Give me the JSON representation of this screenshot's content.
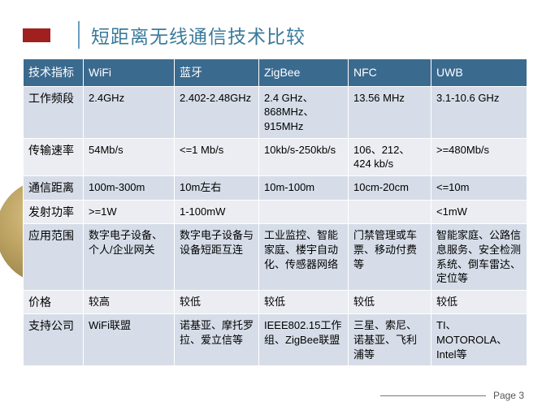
{
  "title": "短距离无线通信技术比较",
  "footer": {
    "page_label": "Page 3"
  },
  "table": {
    "header_bg": "#3b6a8f",
    "header_fg": "#ffffff",
    "band_a_bg": "#d6dde8",
    "band_b_bg": "#ecedf2",
    "columns": [
      "技术指标",
      "WiFi",
      "蓝牙",
      "ZigBee",
      "NFC",
      "UWB"
    ],
    "rows": [
      {
        "band": "a",
        "cells": [
          "工作频段",
          "2.4GHz",
          "2.402-2.48GHz",
          "2.4 GHz、868MHz、915MHz",
          "13.56 MHz",
          "3.1-10.6 GHz"
        ]
      },
      {
        "band": "b",
        "cells": [
          "传输速率",
          "54Mb/s",
          "<=1 Mb/s",
          "10kb/s-250kb/s",
          "106、212、424 kb/s",
          ">=480Mb/s"
        ]
      },
      {
        "band": "a",
        "cells": [
          "通信距离",
          "100m-300m",
          "10m左右",
          "10m-100m",
          "10cm-20cm",
          "<=10m"
        ]
      },
      {
        "band": "b",
        "cells": [
          "发射功率",
          ">=1W",
          "1-100mW",
          "",
          "",
          "<1mW"
        ]
      },
      {
        "band": "a",
        "cells": [
          "应用范围",
          "数字电子设备、个人/企业网关",
          "数字电子设备与设备短距互连",
          "工业监控、智能家庭、楼宇自动化、传感器网络",
          "门禁管理或车票、移动付费等",
          "智能家庭、公路信息服务、安全检测系统、倒车雷达、定位等"
        ]
      },
      {
        "band": "b",
        "cells": [
          "价格",
          "较高",
          "较低",
          "较低",
          "较低",
          "较低"
        ]
      },
      {
        "band": "a",
        "cells": [
          "支持公司",
          "WiFi联盟",
          "诺基亚、摩托罗拉、爱立信等",
          "IEEE802.15工作组、ZigBee联盟",
          "三星、索尼、诺基亚、飞利浦等",
          "TI、MOTOROLA、Intel等"
        ]
      }
    ]
  }
}
